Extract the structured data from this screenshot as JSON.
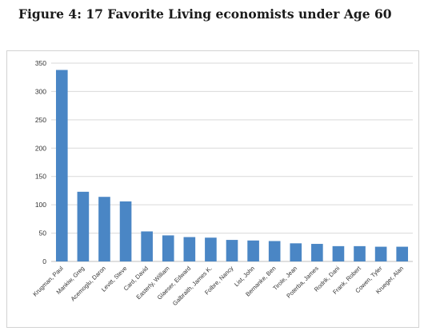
{
  "figure_title": "Figure 4: 17 Favorite Living economists under Age 60",
  "chart_data": {
    "type": "bar",
    "title": "Figure 4: 17 Favorite Living economists under Age 60",
    "xlabel": "",
    "ylabel": "",
    "categories": [
      "Krugman, Paul",
      "Mankiw, Greg",
      "Acemoglu, Daron",
      "Levitt, Steve",
      "Card, David",
      "Easterly, William",
      "Glaeser, Edward",
      "Galbraith, James K.",
      "Folbre, Nancy",
      "List, John",
      "Bernanke, Ben",
      "Tirole, Jean",
      "Poterba, James",
      "Rodrik, Dani",
      "Frank, Robert",
      "Cowen, Tyler",
      "Krueger, Alan"
    ],
    "values": [
      338,
      123,
      114,
      106,
      53,
      46,
      43,
      42,
      38,
      37,
      36,
      32,
      31,
      27,
      27,
      26,
      26
    ],
    "ylim": [
      0,
      350
    ],
    "yticks": [
      0,
      50,
      100,
      150,
      200,
      250,
      300,
      350
    ],
    "grid": true,
    "bar_color": "#4a86c5",
    "grid_color": "#d9d9d9"
  }
}
